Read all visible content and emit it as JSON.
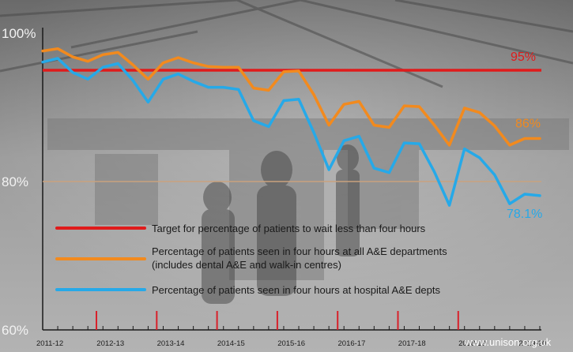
{
  "chart_data": {
    "type": "line",
    "y_tick_labels": [
      "100%",
      "80%",
      "60%"
    ],
    "ylim": [
      60,
      100
    ],
    "x_tick_labels": [
      "2011-12",
      "2012-13",
      "2013-14",
      "2014-15",
      "2015-16",
      "2016-17",
      "2017-18",
      "2018-19",
      "2019-20"
    ],
    "target": {
      "value": 95,
      "label": "95%",
      "color": "#e01b1b"
    },
    "reference_line": {
      "value": 80,
      "color": "#c9a27e"
    },
    "series": [
      {
        "name": "Percentage of patients seen in four hours at all A&E departments (includes dental A&E and walk-in centres)",
        "color": "#f28a1e",
        "end_label": "86%",
        "values": [
          97.6,
          97.9,
          96.8,
          96.2,
          97.1,
          97.4,
          95.7,
          93.8,
          96.0,
          96.7,
          96.0,
          95.5,
          95.4,
          95.4,
          92.6,
          92.3,
          94.8,
          94.9,
          91.7,
          87.6,
          90.4,
          90.8,
          87.6,
          87.3,
          90.2,
          90.1,
          87.6,
          84.9,
          89.9,
          89.3,
          87.5,
          84.9,
          85.8,
          85.8
        ]
      },
      {
        "name": "Percentage of patients seen in four hours at hospital A&E depts",
        "color": "#26a9e8",
        "end_label": "78.1%",
        "values": [
          96.1,
          96.6,
          94.7,
          93.8,
          95.4,
          95.9,
          93.6,
          90.7,
          93.8,
          94.5,
          93.5,
          92.7,
          92.7,
          92.4,
          88.2,
          87.4,
          90.9,
          91.1,
          86.6,
          81.6,
          85.5,
          86.1,
          81.8,
          81.2,
          85.2,
          85.1,
          81.3,
          76.8,
          84.4,
          83.2,
          80.9,
          77.0,
          78.3,
          78.1
        ]
      }
    ],
    "legend": {
      "placement": "bottom-left",
      "items": [
        {
          "label": "Target for percentage of patients to wait less than four hours",
          "color": "#e01b1b"
        },
        {
          "label": "Percentage of patients seen in four hours at all A&E departments",
          "label2": "(includes dental A&E and walk-in centres)",
          "color": "#f28a1e"
        },
        {
          "label": "Percentage of patients seen in four hours at hospital A&E depts",
          "color": "#26a9e8"
        }
      ]
    }
  },
  "credit": "www.unison.org.uk"
}
